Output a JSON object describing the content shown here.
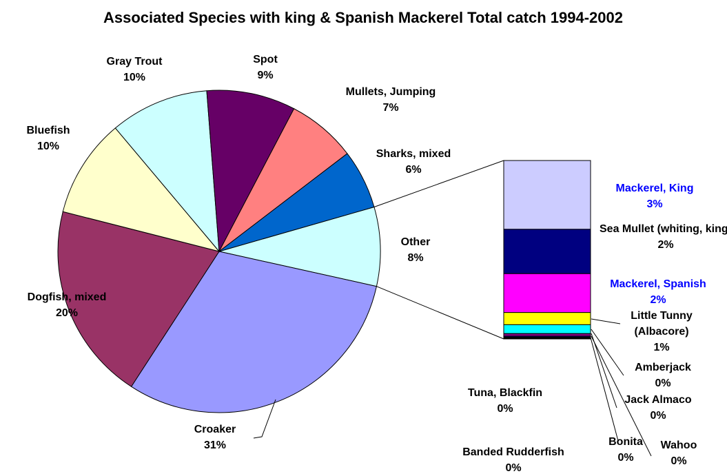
{
  "chart_data": {
    "type": "pie-of-bar",
    "title": "Associated Species with king & Spanish Mackerel Total catch 1994-2002",
    "pie": {
      "categories": [
        "Other",
        "Croaker",
        "Dogfish, mixed",
        "Bluefish",
        "Gray Trout",
        "Spot",
        "Mullets, Jumping",
        "Sharks, mixed"
      ],
      "values": [
        8,
        31,
        20,
        10,
        10,
        9,
        7,
        6
      ],
      "value_labels": [
        "8%",
        "31%",
        "20%",
        "10%",
        "10%",
        "9%",
        "7%",
        "6%"
      ],
      "colors": [
        "#ccffff",
        "#9999ff",
        "#993366",
        "#ffffcc",
        "#ccffff",
        "#660066",
        "#ff8080",
        "#0066cc"
      ]
    },
    "bar": {
      "categories": [
        "Mackerel, King",
        "Sea Mullet (whiting, king)",
        "Mackerel, Spanish",
        "Little Tunny (Albacore)",
        "Amberjack",
        "Jack Almaco",
        "Wahoo",
        "Bonita",
        "Banded Rudderfish",
        "Tuna, Blackfin"
      ],
      "values": [
        3.1,
        2.0,
        1.75,
        0.55,
        0.4,
        0.12,
        0.05,
        0.03,
        0.02,
        0.02
      ],
      "value_labels": [
        "3%",
        "2%",
        "2%",
        "1%",
        "0%",
        "0%",
        "0%",
        "0%",
        "0%",
        "0%"
      ],
      "colors": [
        "#ccccff",
        "#000080",
        "#ff00ff",
        "#ffff00",
        "#00ffff",
        "#800080",
        "#000080",
        "#333333",
        "#000000",
        "#222222"
      ],
      "label_colors": [
        "#0000ff",
        "#000000",
        "#0000ff",
        "#000000",
        "#000000",
        "#000000",
        "#000000",
        "#000000",
        "#000000",
        "#000000"
      ]
    }
  }
}
